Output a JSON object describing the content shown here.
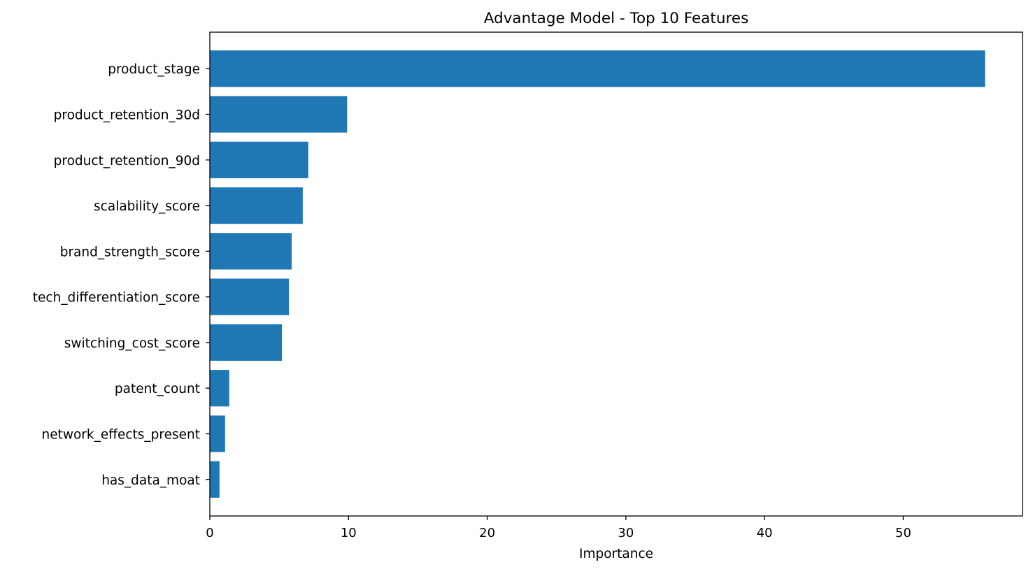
{
  "chart_data": {
    "type": "bar",
    "orientation": "horizontal",
    "title": "Advantage Model - Top 10 Features",
    "xlabel": "Importance",
    "ylabel": "",
    "categories": [
      "product_stage",
      "product_retention_30d",
      "product_retention_90d",
      "scalability_score",
      "brand_strength_score",
      "tech_differentiation_score",
      "switching_cost_score",
      "patent_count",
      "network_effects_present",
      "has_data_moat"
    ],
    "values": [
      55.9,
      9.9,
      7.1,
      6.7,
      5.9,
      5.7,
      5.2,
      1.4,
      1.1,
      0.7
    ],
    "xlim": [
      0,
      58.6
    ],
    "xticks": [
      0,
      10,
      20,
      30,
      40,
      50
    ],
    "bar_color": "#1f77b4",
    "grid": false,
    "legend": "none"
  }
}
